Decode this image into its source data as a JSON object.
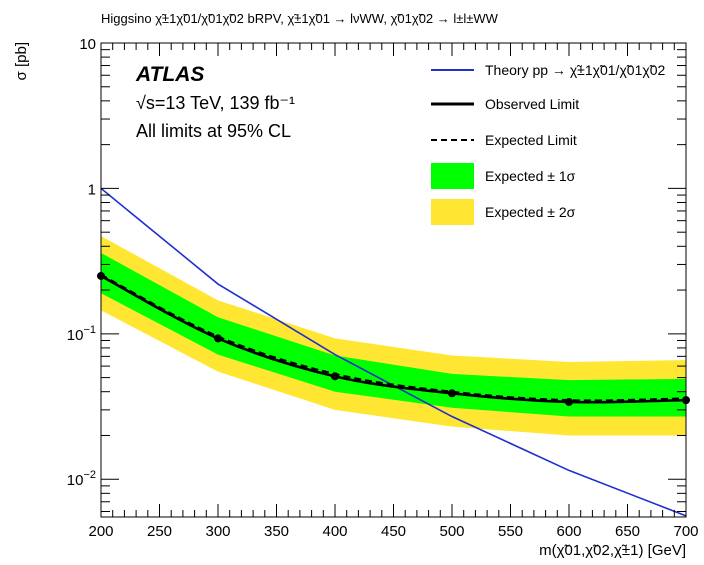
{
  "chart_data": {
    "type": "line",
    "title": "Higgsino χ̃±1χ̃01/χ̃01χ̃02 bRPV, χ̃±1χ̃01 → lνWW, χ̃01χ̃02 → l±l±WW",
    "experiment": "ATLAS",
    "energy_label": "√s=13 TeV, 139 fb⁻¹",
    "cl_label": "All limits at 95% CL",
    "xlabel": "m(χ̃01,χ̃02,χ̃±1) [GeV]",
    "ylabel": "σ [pb]",
    "x_scale": "linear",
    "y_scale": "log",
    "xlim": [
      200,
      700
    ],
    "ylim": [
      0.0055,
      10
    ],
    "xticks": [
      200,
      250,
      300,
      350,
      400,
      450,
      500,
      550,
      600,
      650,
      700
    ],
    "xtick_labels": [
      "200",
      "250",
      "300",
      "350",
      "400",
      "450",
      "500",
      "550",
      "600",
      "650",
      "700"
    ],
    "yticks": [
      {
        "value": 10,
        "label": "10"
      },
      {
        "value": 1,
        "label": "1"
      },
      {
        "value": 0.1,
        "mant": "10",
        "exp": "−1"
      },
      {
        "value": 0.01,
        "mant": "10",
        "exp": "−2"
      }
    ],
    "x": [
      200,
      300,
      400,
      500,
      600,
      700
    ],
    "series": [
      {
        "name": "Theory pp → χ̃±1χ̃01/χ̃01χ̃02",
        "type": "line",
        "color": "#1f2fd0",
        "x": [
          200,
          300,
          400,
          500,
          600,
          700
        ],
        "values": [
          1.0,
          0.22,
          0.072,
          0.027,
          0.0115,
          0.0056
        ]
      },
      {
        "name": "Observed Limit",
        "type": "line",
        "color": "#000000",
        "values": [
          0.25,
          0.093,
          0.051,
          0.039,
          0.034,
          0.035
        ]
      },
      {
        "name": "Expected Limit",
        "type": "dashed",
        "color": "#000000",
        "values": [
          0.255,
          0.096,
          0.053,
          0.04,
          0.035,
          0.036
        ]
      },
      {
        "name": "Expected ± 1σ",
        "type": "band",
        "color": "#00ff00",
        "lower": [
          0.19,
          0.072,
          0.04,
          0.031,
          0.027,
          0.027
        ],
        "upper": [
          0.36,
          0.13,
          0.071,
          0.053,
          0.048,
          0.049
        ]
      },
      {
        "name": "Expected ± 2σ",
        "type": "band",
        "color": "#ffe633",
        "lower": [
          0.145,
          0.055,
          0.03,
          0.023,
          0.02,
          0.02
        ],
        "upper": [
          0.47,
          0.17,
          0.093,
          0.071,
          0.064,
          0.066
        ]
      }
    ],
    "legend_placement": "top-right",
    "grid": false
  }
}
